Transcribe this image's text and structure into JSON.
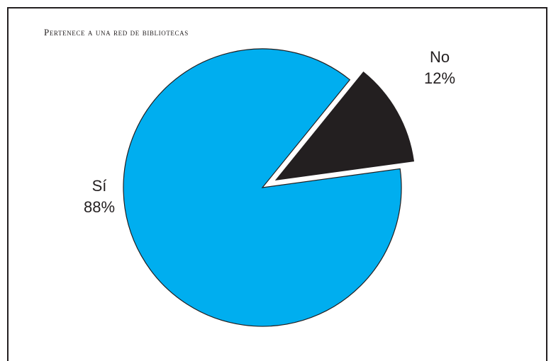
{
  "chart_data": {
    "type": "pie",
    "title": "Pertenece a una red de bibliotecas",
    "categories": [
      "Sí",
      "No"
    ],
    "values": [
      88,
      12
    ],
    "value_labels": [
      "88%",
      "12%"
    ],
    "colors": [
      "#00aeef",
      "#231f20"
    ],
    "exploded": [
      false,
      true
    ]
  }
}
